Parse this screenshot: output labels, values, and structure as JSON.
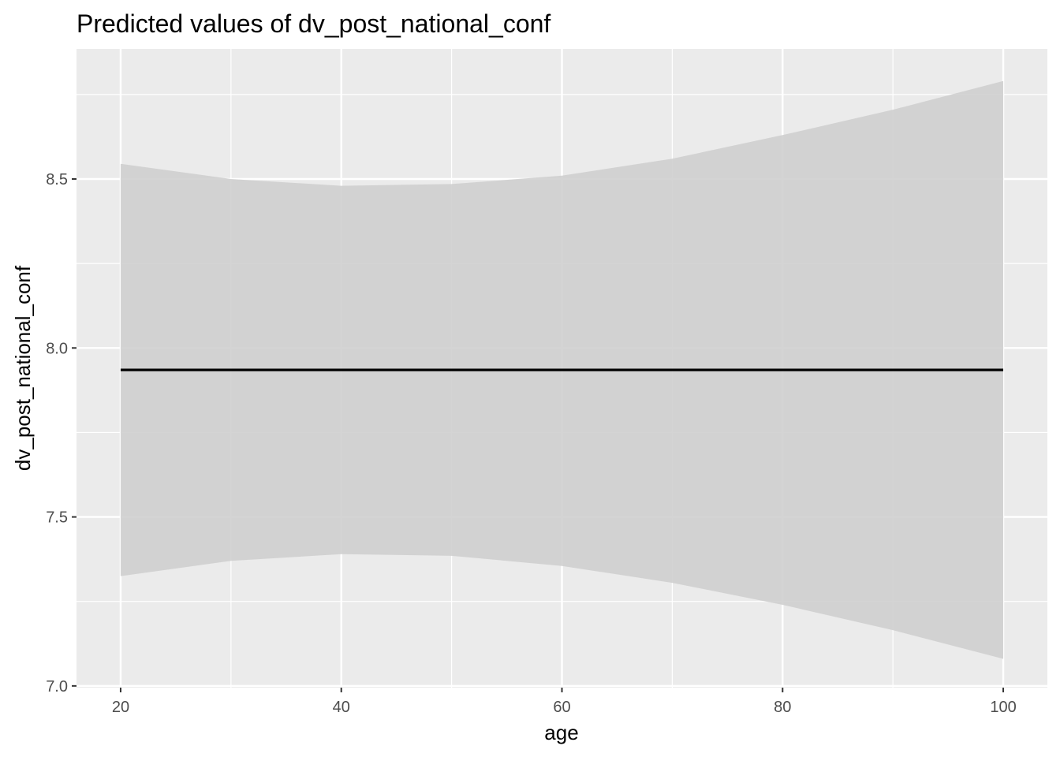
{
  "chart_data": {
    "type": "line",
    "title": "Predicted values of dv_post_national_conf",
    "xlabel": "age",
    "ylabel": "dv_post_national_conf",
    "xlim": [
      16,
      104
    ],
    "ylim": [
      6.995,
      8.885
    ],
    "x_ticks": [
      20,
      40,
      60,
      80,
      100
    ],
    "x_tick_labels": [
      "20",
      "40",
      "60",
      "80",
      "100"
    ],
    "y_ticks": [
      7.0,
      7.5,
      8.0,
      8.5
    ],
    "y_tick_labels": [
      "7.0",
      "7.5",
      "8.0",
      "8.5"
    ],
    "grid": true,
    "legend": "none",
    "colors": {
      "panel": "#ebebeb",
      "grid": "#ffffff",
      "ribbon": "#cfcfcf",
      "line": "#000000",
      "tick": "#4d4d4d",
      "tick_mark": "#333333"
    },
    "series": [
      {
        "x": [
          20,
          30,
          40,
          50,
          60,
          70,
          80,
          90,
          100
        ],
        "y": [
          7.935,
          7.935,
          7.935,
          7.935,
          7.935,
          7.935,
          7.935,
          7.935,
          7.935
        ],
        "ci_low": [
          7.325,
          7.37,
          7.39,
          7.385,
          7.355,
          7.305,
          7.24,
          7.165,
          7.08
        ],
        "ci_high": [
          8.545,
          8.5,
          8.48,
          8.485,
          8.51,
          8.56,
          8.63,
          8.705,
          8.79
        ]
      }
    ]
  }
}
